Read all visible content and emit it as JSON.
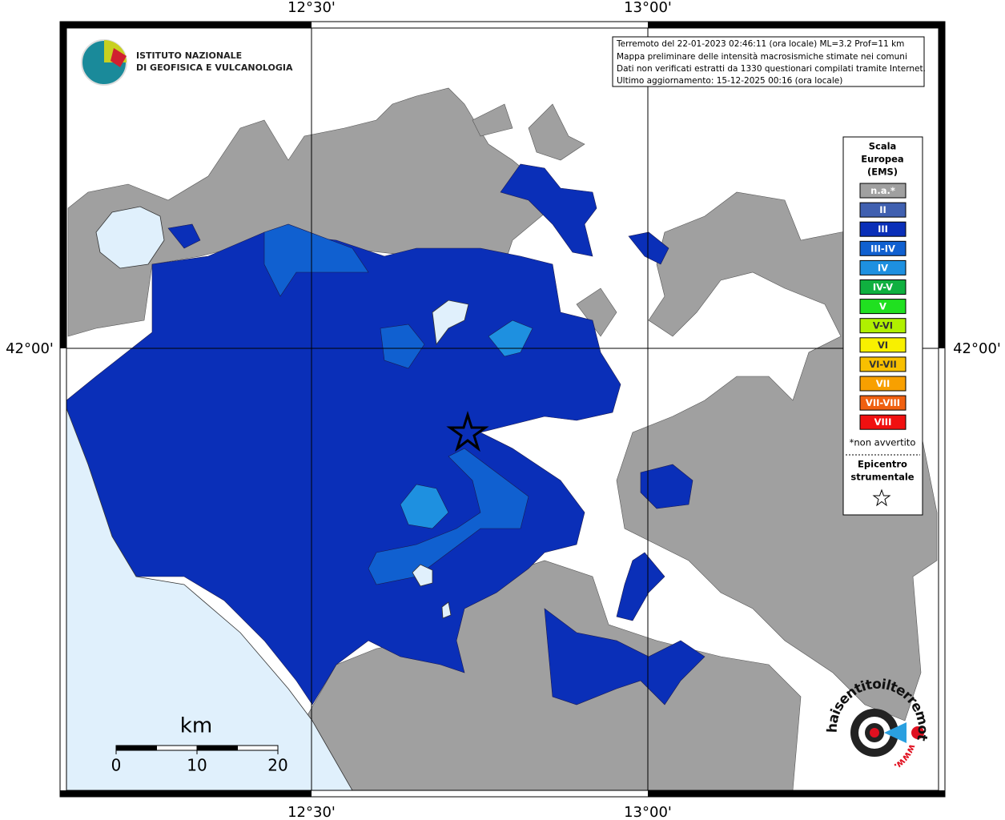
{
  "header": {
    "institute": [
      "ISTITUTO NAZIONALE",
      "DI GEOFISICA E VULCANOLOGIA"
    ]
  },
  "info": [
    "Terremoto del 22-01-2023 02:46:11 (ora locale) ML=3.2 Prof=11 km",
    "Mappa preliminare delle intensità macrosismiche stimate nei comuni",
    "Dati non verificati estratti da 1330 questionari compilati tramite Internet.",
    "Ultimo aggiornamento: 15-12-2025 00:16 (ora locale)"
  ],
  "axes": {
    "top": [
      "12°30'",
      "13°00'"
    ],
    "bottom": [
      "12°30'",
      "13°00'"
    ],
    "left": "42°00'",
    "right": "42°00'"
  },
  "legend": {
    "title": [
      "Scala",
      "Europea",
      "(EMS)"
    ],
    "items": [
      {
        "label": "n.a.*",
        "color": "#a0a0a0"
      },
      {
        "label": "II",
        "color": "#4060b0"
      },
      {
        "label": "III",
        "color": "#0a2fb8"
      },
      {
        "label": "III-IV",
        "color": "#1060d0"
      },
      {
        "label": "IV",
        "color": "#1e90e0"
      },
      {
        "label": "IV-V",
        "color": "#10b040"
      },
      {
        "label": "V",
        "color": "#20e020"
      },
      {
        "label": "V-VI",
        "color": "#b0f000"
      },
      {
        "label": "VI",
        "color": "#f8f000"
      },
      {
        "label": "VI-VII",
        "color": "#f8c000"
      },
      {
        "label": "VII",
        "color": "#f8a000"
      },
      {
        "label": "VII-VIII",
        "color": "#f06010"
      },
      {
        "label": "VIII",
        "color": "#f01010"
      }
    ],
    "note": "*non avvertito",
    "epicenter": [
      "Epicentro",
      "strumentale"
    ]
  },
  "scale": {
    "unit": "km",
    "ticks": [
      "0",
      "10",
      "20"
    ]
  },
  "badge": {
    "site": "haisentitoilterremoto.it",
    "www": "www."
  }
}
